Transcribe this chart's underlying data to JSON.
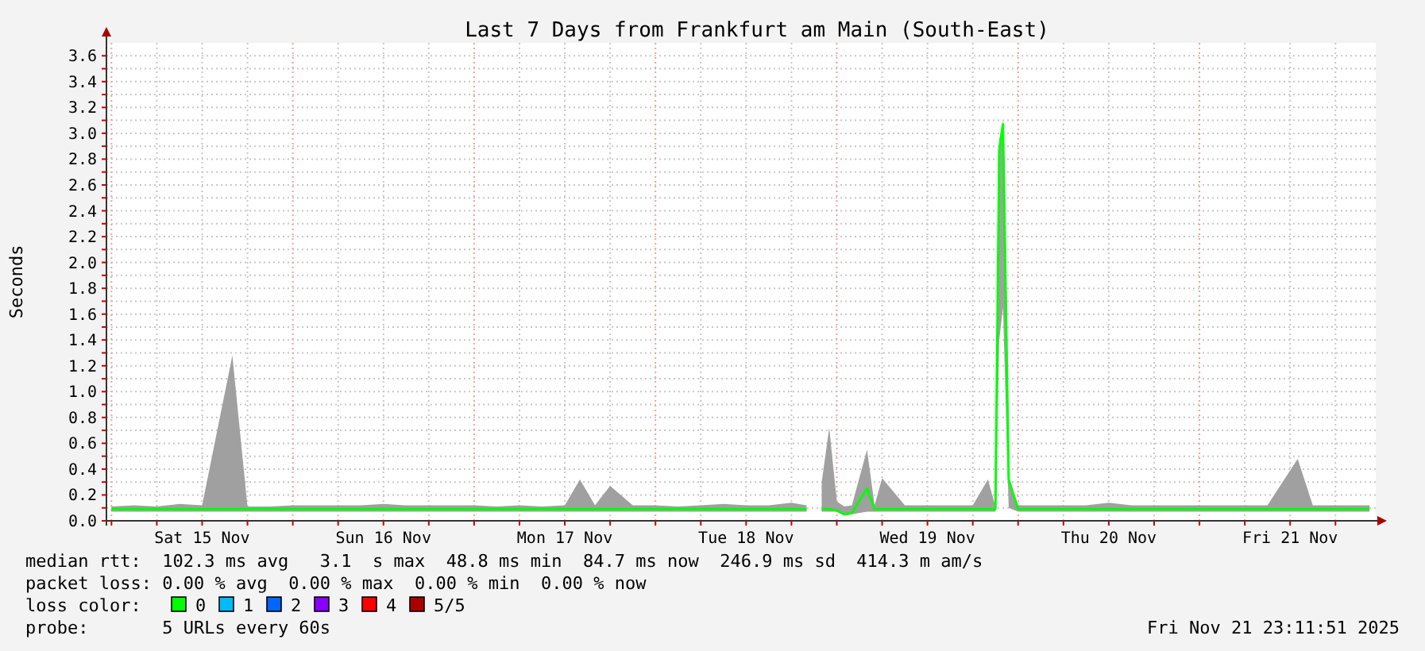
{
  "chart_data": {
    "type": "line",
    "title": "Last 7 Days from Frankfurt am Main (South-East)",
    "ylabel": "Seconds",
    "xlim": [
      "2025-11-14T23:20",
      "2025-11-21T23:20"
    ],
    "xticks": [
      {
        "value": "2025-11-15T00:00",
        "label": null
      },
      {
        "value": "2025-11-15T06:00",
        "label": null
      },
      {
        "value": "2025-11-15T12:00",
        "label": "Sat 15 Nov"
      },
      {
        "value": "2025-11-15T18:00",
        "label": null
      },
      {
        "value": "2025-11-16T00:00",
        "label": null
      },
      {
        "value": "2025-11-16T06:00",
        "label": null
      },
      {
        "value": "2025-11-16T12:00",
        "label": "Sun 16 Nov"
      },
      {
        "value": "2025-11-16T18:00",
        "label": null
      },
      {
        "value": "2025-11-17T00:00",
        "label": null
      },
      {
        "value": "2025-11-17T06:00",
        "label": null
      },
      {
        "value": "2025-11-17T12:00",
        "label": "Mon 17 Nov"
      },
      {
        "value": "2025-11-17T18:00",
        "label": null
      },
      {
        "value": "2025-11-18T00:00",
        "label": null
      },
      {
        "value": "2025-11-18T06:00",
        "label": null
      },
      {
        "value": "2025-11-18T12:00",
        "label": "Tue 18 Nov"
      },
      {
        "value": "2025-11-18T18:00",
        "label": null
      },
      {
        "value": "2025-11-19T00:00",
        "label": null
      },
      {
        "value": "2025-11-19T06:00",
        "label": null
      },
      {
        "value": "2025-11-19T12:00",
        "label": "Wed 19 Nov"
      },
      {
        "value": "2025-11-19T18:00",
        "label": null
      },
      {
        "value": "2025-11-20T00:00",
        "label": null
      },
      {
        "value": "2025-11-20T06:00",
        "label": null
      },
      {
        "value": "2025-11-20T12:00",
        "label": "Thu 20 Nov"
      },
      {
        "value": "2025-11-20T18:00",
        "label": null
      },
      {
        "value": "2025-11-21T00:00",
        "label": null
      },
      {
        "value": "2025-11-21T06:00",
        "label": null
      },
      {
        "value": "2025-11-21T12:00",
        "label": "Fri 21 Nov"
      },
      {
        "value": "2025-11-21T18:00",
        "label": null
      }
    ],
    "ylim": [
      0,
      3.7
    ],
    "yticks": [
      {
        "value": 0,
        "label": "0.0"
      },
      {
        "value": 0.1,
        "label": null
      },
      0.2,
      {
        "value": 0.3,
        "label": null
      },
      0.4,
      {
        "value": 0.5,
        "label": null
      },
      0.6,
      {
        "value": 0.7,
        "label": null
      },
      0.8,
      {
        "value": 0.9,
        "label": null
      },
      {
        "value": 1,
        "label": "1.0"
      },
      {
        "value": 1.1,
        "label": null
      },
      1.2,
      {
        "value": 1.3,
        "label": null
      },
      1.4,
      {
        "value": 1.5,
        "label": null
      },
      1.6,
      {
        "value": 1.7,
        "label": null
      },
      1.8,
      {
        "value": 1.9,
        "label": null
      },
      {
        "value": 2,
        "label": "2.0"
      },
      {
        "value": 2.1,
        "label": null
      },
      2.2,
      {
        "value": 2.3,
        "label": null
      },
      2.4,
      {
        "value": 2.5,
        "label": null
      },
      2.6,
      {
        "value": 2.7,
        "label": null
      },
      2.8,
      {
        "value": 2.9,
        "label": null
      },
      {
        "value": 3,
        "label": "3.0"
      },
      {
        "value": 3.1,
        "label": null
      },
      3.2,
      {
        "value": 3.3,
        "label": null
      },
      3.4,
      {
        "value": 3.5,
        "label": null
      },
      3.6
    ],
    "grid": true,
    "legend": "bottom",
    "legend_title": "loss color:",
    "x": [
      "2025-11-15T00:00",
      "2025-11-15T03:00",
      "2025-11-15T06:00",
      "2025-11-15T09:00",
      "2025-11-15T12:00",
      "2025-11-15T16:00",
      "2025-11-15T18:00",
      "2025-11-15T21:00",
      "2025-11-16T00:00",
      "2025-11-16T03:00",
      "2025-11-16T06:00",
      "2025-11-16T09:00",
      "2025-11-16T12:00",
      "2025-11-16T15:00",
      "2025-11-16T18:00",
      "2025-11-16T21:00",
      "2025-11-17T00:00",
      "2025-11-17T03:00",
      "2025-11-17T06:00",
      "2025-11-17T09:00",
      "2025-11-17T12:00",
      "2025-11-17T14:00",
      "2025-11-17T16:00",
      "2025-11-17T18:00",
      "2025-11-17T21:00",
      "2025-11-18T00:00",
      "2025-11-18T03:00",
      "2025-11-18T06:00",
      "2025-11-18T09:00",
      "2025-11-18T12:00",
      "2025-11-18T15:00",
      "2025-11-18T18:00",
      "2025-11-18T20:00",
      "2025-11-18T21:00",
      "2025-11-18T22:00",
      "2025-11-18T23:00",
      "2025-11-19T00:00",
      "2025-11-19T01:00",
      "2025-11-19T02:00",
      "2025-11-19T04:00",
      "2025-11-19T05:00",
      "2025-11-19T06:00",
      "2025-11-19T09:00",
      "2025-11-19T12:00",
      "2025-11-19T15:00",
      "2025-11-19T18:00",
      "2025-11-19T20:00",
      "2025-11-19T21:00",
      "2025-11-19T21:30",
      "2025-11-19T22:00",
      "2025-11-19T22:45",
      "2025-11-20T00:00",
      "2025-11-20T03:00",
      "2025-11-20T06:00",
      "2025-11-20T09:00",
      "2025-11-20T12:00",
      "2025-11-20T15:00",
      "2025-11-20T18:00",
      "2025-11-20T21:00",
      "2025-11-21T00:00",
      "2025-11-21T03:00",
      "2025-11-21T06:00",
      "2025-11-21T09:00",
      "2025-11-21T13:00",
      "2025-11-21T15:00",
      "2025-11-21T18:00",
      "2025-11-21T21:00",
      "2025-11-21T22:30"
    ],
    "series": [
      {
        "name": "0",
        "color": "#00ff00",
        "values": [
          0.09,
          0.09,
          0.09,
          0.09,
          0.09,
          0.09,
          0.09,
          0.09,
          0.09,
          0.09,
          0.09,
          0.09,
          0.09,
          0.09,
          0.09,
          0.09,
          0.09,
          0.09,
          0.09,
          0.09,
          0.09,
          0.09,
          0.09,
          0.09,
          0.09,
          0.09,
          0.09,
          0.09,
          0.09,
          0.09,
          0.09,
          0.09,
          0.09,
          null,
          0.09,
          0.09,
          0.08,
          0.05,
          0.06,
          0.25,
          0.09,
          0.09,
          0.09,
          0.09,
          0.09,
          0.09,
          0.09,
          0.09,
          2.87,
          3.07,
          0.32,
          0.09,
          0.09,
          0.09,
          0.09,
          0.09,
          0.09,
          0.09,
          0.09,
          0.09,
          0.09,
          0.09,
          0.09,
          0.09,
          0.09,
          0.09,
          0.09,
          0.09
        ],
        "lower": [
          0.07,
          0.07,
          0.07,
          0.07,
          0.07,
          0.07,
          0.07,
          0.07,
          0.07,
          0.07,
          0.07,
          0.07,
          0.07,
          0.07,
          0.07,
          0.07,
          0.07,
          0.07,
          0.07,
          0.07,
          0.07,
          0.07,
          0.07,
          0.07,
          0.07,
          0.07,
          0.07,
          0.07,
          0.07,
          0.07,
          0.07,
          0.07,
          0.07,
          null,
          0.07,
          0.07,
          0.07,
          0.04,
          0.05,
          0.07,
          0.07,
          0.07,
          0.07,
          0.07,
          0.07,
          0.07,
          0.07,
          0.07,
          1.4,
          1.65,
          0.1,
          0.07,
          0.07,
          0.07,
          0.07,
          0.07,
          0.07,
          0.07,
          0.07,
          0.07,
          0.07,
          0.07,
          0.07,
          0.07,
          0.07,
          0.07,
          0.07,
          0.07
        ],
        "upper": [
          0.11,
          0.12,
          0.11,
          0.13,
          0.12,
          1.28,
          0.11,
          0.11,
          0.12,
          0.12,
          0.12,
          0.12,
          0.13,
          0.12,
          0.12,
          0.12,
          0.12,
          0.11,
          0.12,
          0.11,
          0.12,
          0.32,
          0.12,
          0.27,
          0.12,
          0.12,
          0.11,
          0.12,
          0.13,
          0.12,
          0.12,
          0.14,
          0.12,
          null,
          0.3,
          0.72,
          0.15,
          0.11,
          0.12,
          0.55,
          0.12,
          0.33,
          0.12,
          0.12,
          0.12,
          0.12,
          0.32,
          0.11,
          2.95,
          3.1,
          0.32,
          0.12,
          0.12,
          0.12,
          0.12,
          0.14,
          0.12,
          0.12,
          0.12,
          0.12,
          0.12,
          0.12,
          0.12,
          0.48,
          0.12,
          0.12,
          0.12,
          0.12
        ]
      },
      {
        "name": "1",
        "color": "#00bbff",
        "values": [
          null,
          null,
          null,
          null,
          null,
          null,
          null,
          null,
          null,
          null,
          null,
          null,
          null,
          null,
          null,
          null,
          null,
          null,
          null,
          null,
          null,
          null,
          null,
          null,
          null,
          null,
          null,
          null,
          null,
          null,
          null,
          null,
          null,
          null,
          null,
          null,
          null,
          null,
          null,
          null,
          null,
          null,
          null,
          null,
          null,
          null,
          null,
          null,
          null,
          null,
          null,
          null,
          null,
          null,
          null,
          null,
          null,
          null,
          null,
          null,
          null,
          null,
          null,
          null,
          null,
          null,
          null,
          null
        ]
      },
      {
        "name": "2",
        "color": "#0066ff",
        "values": [
          null,
          null,
          null,
          null,
          null,
          null,
          null,
          null,
          null,
          null,
          null,
          null,
          null,
          null,
          null,
          null,
          null,
          null,
          null,
          null,
          null,
          null,
          null,
          null,
          null,
          null,
          null,
          null,
          null,
          null,
          null,
          null,
          null,
          null,
          null,
          null,
          null,
          null,
          null,
          null,
          null,
          null,
          null,
          null,
          null,
          null,
          null,
          null,
          null,
          null,
          null,
          null,
          null,
          null,
          null,
          null,
          null,
          null,
          null,
          null,
          null,
          null,
          null,
          null,
          null,
          null,
          null,
          null
        ]
      },
      {
        "name": "3",
        "color": "#8800ff",
        "values": [
          null,
          null,
          null,
          null,
          null,
          null,
          null,
          null,
          null,
          null,
          null,
          null,
          null,
          null,
          null,
          null,
          null,
          null,
          null,
          null,
          null,
          null,
          null,
          null,
          null,
          null,
          null,
          null,
          null,
          null,
          null,
          null,
          null,
          null,
          null,
          null,
          null,
          null,
          null,
          null,
          null,
          null,
          null,
          null,
          null,
          null,
          null,
          null,
          null,
          null,
          null,
          null,
          null,
          null,
          null,
          null,
          null,
          null,
          null,
          null,
          null,
          null,
          null,
          null,
          null,
          null,
          null,
          null
        ]
      },
      {
        "name": "4",
        "color": "#ff0000",
        "values": [
          null,
          null,
          null,
          null,
          null,
          null,
          null,
          null,
          null,
          null,
          null,
          null,
          null,
          null,
          null,
          null,
          null,
          null,
          null,
          null,
          null,
          null,
          null,
          null,
          null,
          null,
          null,
          null,
          null,
          null,
          null,
          null,
          null,
          null,
          null,
          null,
          null,
          null,
          null,
          null,
          null,
          null,
          null,
          null,
          null,
          null,
          null,
          null,
          null,
          null,
          null,
          null,
          null,
          null,
          null,
          null,
          null,
          null,
          null,
          null,
          null,
          null,
          null,
          null,
          null,
          null,
          null,
          null
        ]
      },
      {
        "name": "5/5",
        "color": "#aa0000",
        "values": [
          null,
          null,
          null,
          null,
          null,
          null,
          null,
          null,
          null,
          null,
          null,
          null,
          null,
          null,
          null,
          null,
          null,
          null,
          null,
          null,
          null,
          null,
          null,
          null,
          null,
          null,
          null,
          null,
          null,
          null,
          null,
          null,
          null,
          null,
          null,
          null,
          null,
          null,
          null,
          null,
          null,
          null,
          null,
          null,
          null,
          null,
          null,
          null,
          null,
          null,
          null,
          null,
          null,
          null,
          null,
          null,
          null,
          null,
          null,
          null,
          null,
          null,
          null,
          null,
          null,
          null,
          null,
          null
        ]
      }
    ],
    "annotations": [
      "median rtt:  102.3 ms avg   3.1  s max  48.8 ms min  84.7 ms now  246.9 ms sd  414.3 m am/s",
      "packet loss: 0.00 % avg  0.00 % max  0.00 % min  0.00 % now",
      "probe:       5 URLs every 60s",
      "Fri Nov 21 23:11:51 2025"
    ]
  }
}
